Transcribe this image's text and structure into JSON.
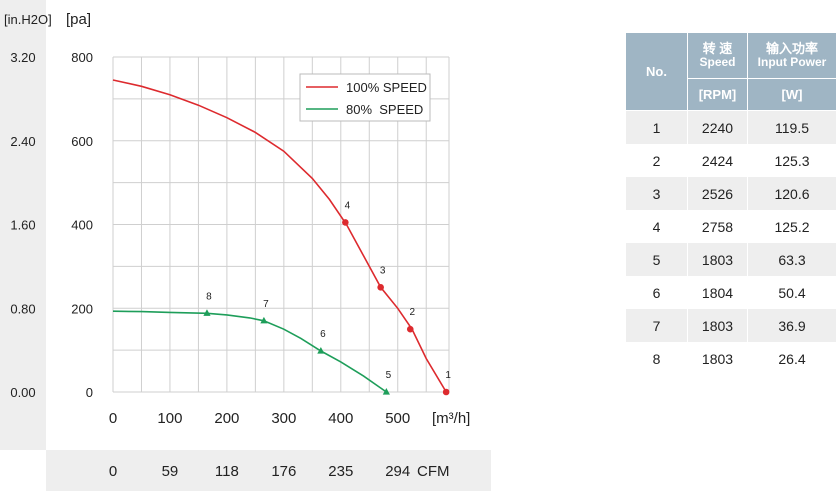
{
  "chart_data": {
    "type": "line",
    "ylabel": "[pa]",
    "ylabel_secondary": "[in.H2O]",
    "xlabel": "[m³/h]",
    "xlabel_secondary": "CFM",
    "xlim": [
      0,
      590
    ],
    "ylim": [
      0,
      800
    ],
    "x_ticks": [
      "0",
      "100",
      "200",
      "300",
      "400",
      "500"
    ],
    "y_ticks": [
      "0",
      "200",
      "400",
      "600",
      "800"
    ],
    "y_ticks_secondary": [
      "0.00",
      "0.80",
      "1.60",
      "2.40",
      "3.20"
    ],
    "x_ticks_secondary": [
      "0",
      "59",
      "118",
      "176",
      "235",
      "294"
    ],
    "grid": true,
    "legend_position": "top-right",
    "series": [
      {
        "name": "100% SPEED",
        "color": "#dd2a2e",
        "marker": "circle",
        "curve": [
          [
            0,
            745
          ],
          [
            50,
            730
          ],
          [
            100,
            710
          ],
          [
            150,
            685
          ],
          [
            200,
            655
          ],
          [
            250,
            620
          ],
          [
            300,
            575
          ],
          [
            350,
            510
          ],
          [
            380,
            460
          ],
          [
            410,
            400
          ],
          [
            440,
            325
          ],
          [
            470,
            250
          ],
          [
            500,
            200
          ],
          [
            525,
            150
          ],
          [
            550,
            80
          ],
          [
            585,
            0
          ]
        ],
        "points": [
          {
            "label": "1",
            "x": 585,
            "y": 0
          },
          {
            "label": "2",
            "x": 522,
            "y": 150
          },
          {
            "label": "3",
            "x": 470,
            "y": 250
          },
          {
            "label": "4",
            "x": 408,
            "y": 405
          }
        ]
      },
      {
        "name": "80%  SPEED",
        "color": "#1e9e5a",
        "marker": "triangle",
        "curve": [
          [
            0,
            193
          ],
          [
            50,
            192
          ],
          [
            100,
            190
          ],
          [
            165,
            188
          ],
          [
            200,
            184
          ],
          [
            240,
            177
          ],
          [
            265,
            170
          ],
          [
            300,
            150
          ],
          [
            330,
            128
          ],
          [
            365,
            98
          ],
          [
            400,
            72
          ],
          [
            440,
            38
          ],
          [
            480,
            0
          ]
        ],
        "points": [
          {
            "label": "5",
            "x": 480,
            "y": 0
          },
          {
            "label": "6",
            "x": 365,
            "y": 98
          },
          {
            "label": "7",
            "x": 265,
            "y": 170
          },
          {
            "label": "8",
            "x": 165,
            "y": 188
          }
        ]
      }
    ]
  },
  "spec_table": {
    "header": {
      "no": "No.",
      "speed_cn": "转 速",
      "speed_en": "Speed",
      "power_cn": "输入功率",
      "power_en": "Input Power",
      "speed_unit": "[RPM]",
      "power_unit": "[W]"
    },
    "rows": [
      {
        "no": "1",
        "speed": "2240",
        "power": "119.5"
      },
      {
        "no": "2",
        "speed": "2424",
        "power": "125.3"
      },
      {
        "no": "3",
        "speed": "2526",
        "power": "120.6"
      },
      {
        "no": "4",
        "speed": "2758",
        "power": "125.2"
      },
      {
        "no": "5",
        "speed": "1803",
        "power": "63.3"
      },
      {
        "no": "6",
        "speed": "1804",
        "power": "50.4"
      },
      {
        "no": "7",
        "speed": "1803",
        "power": "36.9"
      },
      {
        "no": "8",
        "speed": "1803",
        "power": "26.4"
      }
    ]
  }
}
